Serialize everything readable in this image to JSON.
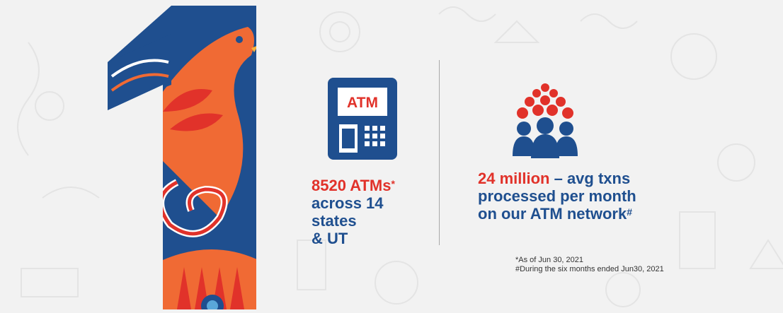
{
  "atm_icon": {
    "label": "ATM",
    "icon": "atm-machine-icon",
    "color": "#1f4f8f"
  },
  "people_icon": {
    "icon": "people-crowd-icon",
    "colors": [
      "#e1322a",
      "#1f4f8f"
    ]
  },
  "stat_atms": {
    "highlight": "8520 ATMs",
    "highlight_mark": "*",
    "line1": "across 14 states",
    "line2": "& UT"
  },
  "stat_transactions": {
    "highlight": "24 million",
    "rest": " – avg txns",
    "line2": "processed per month",
    "line3": "on our ATM network",
    "mark": "#"
  },
  "footnotes": {
    "note1": "*As of Jun 30, 2021",
    "note2": "#During the six months ended Jun30, 2021"
  },
  "colors": {
    "brand_blue": "#1f4f8f",
    "brand_red": "#e1322a",
    "orange": "#f06a34"
  }
}
